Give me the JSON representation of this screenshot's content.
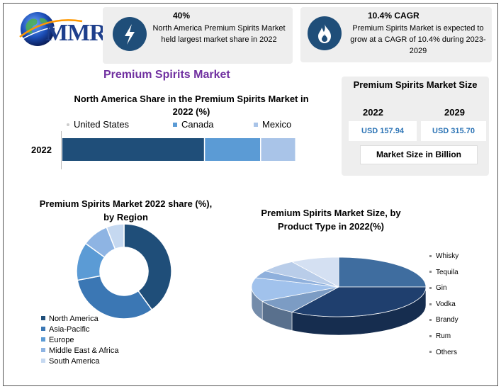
{
  "brand": {
    "logo_text": "MMR"
  },
  "stats": [
    {
      "value": "40%",
      "text": "North America Premium Spirits Market held largest market share in 2022",
      "icon": "lightning-icon"
    },
    {
      "value": "10.4% CAGR",
      "text": "Premium Spirits Market is expected to grow at a CAGR of 10.4% during 2023-2029",
      "icon": "flame-icon"
    }
  ],
  "page_title": "Premium Spirits Market",
  "market_size": {
    "title": "Premium Spirits Market Size",
    "year_start": "2022",
    "year_end": "2029",
    "value_start": "USD 157.94",
    "value_end": "USD 315.70",
    "unit_label": "Market Size in Billion"
  },
  "chart_data": [
    {
      "type": "bar",
      "orientation": "horizontal-stacked",
      "title": "North America Share in the Premium Spirits Market in 2022 (%)",
      "categories": [
        "2022"
      ],
      "series": [
        {
          "name": "United States",
          "values": [
            61
          ],
          "color": "#1f4e79"
        },
        {
          "name": "Canada",
          "values": [
            24
          ],
          "color": "#5b9bd5"
        },
        {
          "name": "Mexico",
          "values": [
            15
          ],
          "color": "#a9c4e8"
        }
      ],
      "xlim": [
        0,
        100
      ],
      "legend": "top"
    },
    {
      "type": "pie",
      "style": "donut",
      "title": "Premium Spirits Market 2022 share (%), by Region",
      "labels": [
        "North America",
        "Asia-Pacific",
        "Europe",
        "Middle East & Africa",
        "South America"
      ],
      "values": [
        40,
        32,
        13,
        9,
        6
      ],
      "colors": [
        "#1f4e79",
        "#3b77b4",
        "#5b9bd5",
        "#8eb4e3",
        "#c5d8f0"
      ],
      "legend": "bottom-left"
    },
    {
      "type": "pie",
      "style": "3d",
      "title": "Premium Spirits Market Size, by Product Type in 2022(%)",
      "labels": [
        "Whisky",
        "Tequila",
        "Gin",
        "Vodka",
        "Brandy",
        "Rum",
        "Others"
      ],
      "values": [
        25,
        34,
        8,
        13,
        4,
        7,
        9
      ],
      "colors": [
        "#3f6d9f",
        "#1f3f6e",
        "#7c9cc4",
        "#a1c2ec",
        "#8fb0dc",
        "#b9cde9",
        "#d4e0f2"
      ],
      "legend": "right"
    }
  ]
}
